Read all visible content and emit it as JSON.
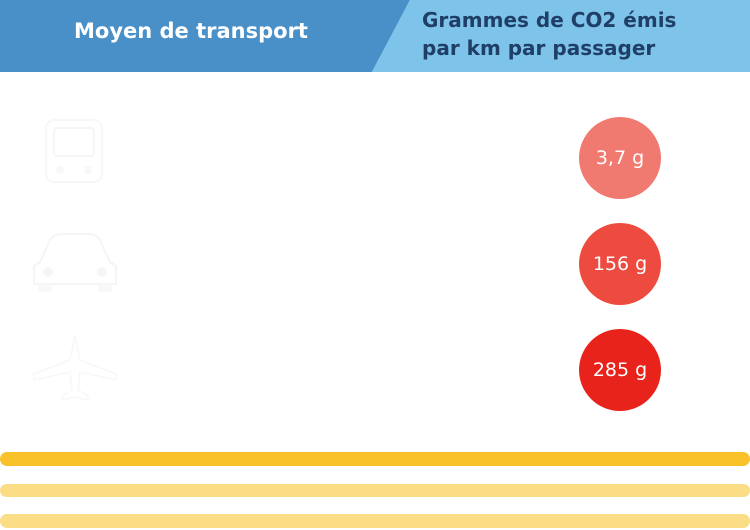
{
  "header": {
    "left_label": "Moyen de transport",
    "right_label": "Grammes de CO2 émis\npar km par passager"
  },
  "rows": [
    {
      "icon": "train-icon",
      "value": "3,7 g",
      "color": "#f07a70"
    },
    {
      "icon": "car-icon",
      "value": "156 g",
      "color": "#ee4b40"
    },
    {
      "icon": "plane-icon",
      "value": "285 g",
      "color": "#e8231b"
    }
  ],
  "colors": {
    "header_left": "#4a90c8",
    "header_right": "#7dc3ea",
    "stripe_main": "#f9c22a",
    "stripe_light": "#fbdd86"
  }
}
